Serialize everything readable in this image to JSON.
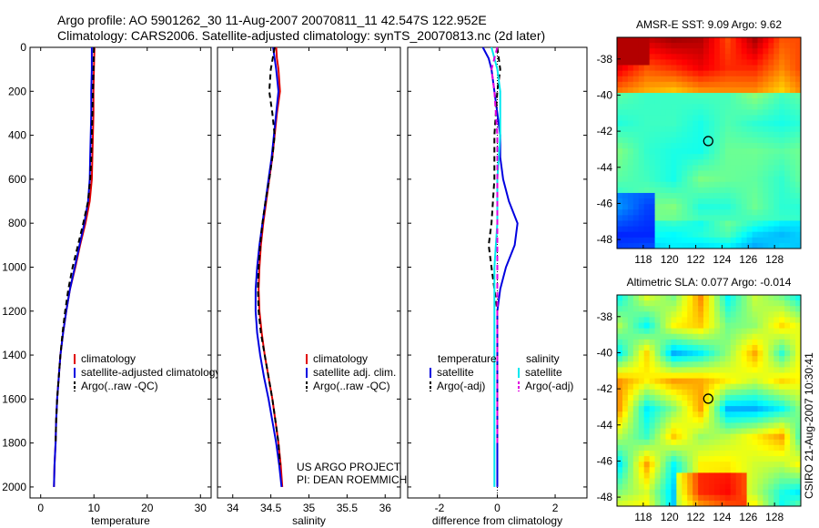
{
  "header": {
    "line1": "Argo profile: AO 5901262_30 11-Aug-2007 20070811_11 42.547S 122.952E",
    "line2": "Climatology: CARS2006. Satellite-adjusted climatology: synTS_20070813.nc (2d later)"
  },
  "credit": "CSIRO 21-Aug-2007 10:30:41",
  "project_text": [
    "US ARGO PROJECT",
    "PI: DEAN ROEMMICH"
  ],
  "colors": {
    "climatology": "#e00000",
    "satellite": "#0000e0",
    "argo": "#000000",
    "salinity_sat": "#00e8f0",
    "salinity_adj": "#e000e0"
  },
  "chart_data": [
    {
      "type": "line",
      "xlabel": "temperature",
      "xlim": [
        -2,
        32
      ],
      "ylim": [
        2050,
        0
      ],
      "xticks": [
        0,
        10,
        20,
        30
      ],
      "yticks": [
        0,
        200,
        400,
        600,
        800,
        1000,
        1200,
        1400,
        1600,
        1800,
        2000
      ],
      "legend_placement": "bottom-right",
      "series": [
        {
          "name": "climatology",
          "color": "#e00000",
          "dash": false,
          "points": [
            [
              10.1,
              0
            ],
            [
              10.0,
              100
            ],
            [
              9.9,
              200
            ],
            [
              9.9,
              300
            ],
            [
              9.8,
              400
            ],
            [
              9.7,
              500
            ],
            [
              9.6,
              600
            ],
            [
              9.2,
              700
            ],
            [
              8.4,
              800
            ],
            [
              7.4,
              900
            ],
            [
              6.5,
              1000
            ],
            [
              5.5,
              1100
            ],
            [
              4.8,
              1200
            ],
            [
              4.2,
              1300
            ],
            [
              3.7,
              1400
            ],
            [
              3.4,
              1500
            ],
            [
              3.1,
              1600
            ],
            [
              2.9,
              1700
            ],
            [
              2.8,
              1800
            ],
            [
              2.6,
              1900
            ],
            [
              2.5,
              2000
            ]
          ]
        },
        {
          "name": "satellite-adjusted climatology",
          "color": "#0000e0",
          "dash": false,
          "points": [
            [
              9.6,
              0
            ],
            [
              9.6,
              100
            ],
            [
              9.5,
              200
            ],
            [
              9.5,
              300
            ],
            [
              9.4,
              400
            ],
            [
              9.3,
              500
            ],
            [
              9.2,
              600
            ],
            [
              8.9,
              700
            ],
            [
              8.2,
              800
            ],
            [
              7.3,
              900
            ],
            [
              6.4,
              1000
            ],
            [
              5.5,
              1100
            ],
            [
              4.8,
              1200
            ],
            [
              4.2,
              1300
            ],
            [
              3.7,
              1400
            ],
            [
              3.4,
              1500
            ],
            [
              3.1,
              1600
            ],
            [
              2.9,
              1700
            ],
            [
              2.8,
              1800
            ],
            [
              2.6,
              1900
            ],
            [
              2.5,
              2000
            ]
          ]
        },
        {
          "name": "Argo(..raw -QC)",
          "color": "#000000",
          "dash": true,
          "points": [
            [
              10.0,
              0
            ],
            [
              9.9,
              100
            ],
            [
              9.8,
              200
            ],
            [
              9.7,
              300
            ],
            [
              9.6,
              400
            ],
            [
              9.5,
              500
            ],
            [
              9.3,
              600
            ],
            [
              8.9,
              700
            ],
            [
              8.0,
              800
            ],
            [
              7.0,
              900
            ],
            [
              6.0,
              1000
            ],
            [
              5.2,
              1100
            ],
            [
              4.6,
              1200
            ],
            [
              4.1,
              1300
            ],
            [
              3.7,
              1400
            ],
            [
              3.4,
              1500
            ],
            [
              3.1,
              1600
            ],
            [
              2.9,
              1700
            ],
            [
              2.8,
              1800
            ]
          ]
        }
      ]
    },
    {
      "type": "line",
      "xlabel": "salinity",
      "xlim": [
        33.8,
        36.2
      ],
      "ylim": [
        2050,
        0
      ],
      "xticks": [
        34,
        34.5,
        35,
        35.5,
        36
      ],
      "legend_placement": "bottom-right",
      "series": [
        {
          "name": "climatology",
          "color": "#e00000",
          "dash": false,
          "points": [
            [
              34.57,
              0
            ],
            [
              34.58,
              50
            ],
            [
              34.6,
              100
            ],
            [
              34.62,
              200
            ],
            [
              34.58,
              300
            ],
            [
              34.55,
              400
            ],
            [
              34.52,
              500
            ],
            [
              34.48,
              600
            ],
            [
              34.44,
              700
            ],
            [
              34.4,
              800
            ],
            [
              34.37,
              900
            ],
            [
              34.35,
              1000
            ],
            [
              34.34,
              1100
            ],
            [
              34.35,
              1200
            ],
            [
              34.38,
              1300
            ],
            [
              34.42,
              1400
            ],
            [
              34.47,
              1500
            ],
            [
              34.52,
              1600
            ],
            [
              34.56,
              1700
            ],
            [
              34.6,
              1800
            ],
            [
              34.63,
              1900
            ],
            [
              34.65,
              2000
            ]
          ]
        },
        {
          "name": "satellite adj. clim.",
          "color": "#0000e0",
          "dash": false,
          "points": [
            [
              34.53,
              0
            ],
            [
              34.55,
              50
            ],
            [
              34.57,
              100
            ],
            [
              34.6,
              200
            ],
            [
              34.57,
              300
            ],
            [
              34.54,
              400
            ],
            [
              34.51,
              500
            ],
            [
              34.47,
              600
            ],
            [
              34.43,
              700
            ],
            [
              34.39,
              800
            ],
            [
              34.35,
              900
            ],
            [
              34.32,
              1000
            ],
            [
              34.3,
              1100
            ],
            [
              34.3,
              1200
            ],
            [
              34.32,
              1300
            ],
            [
              34.36,
              1400
            ],
            [
              34.41,
              1500
            ],
            [
              34.47,
              1600
            ],
            [
              34.52,
              1700
            ],
            [
              34.57,
              1800
            ],
            [
              34.61,
              1900
            ],
            [
              34.64,
              2000
            ]
          ]
        },
        {
          "name": "Argo(..raw -QC)",
          "color": "#000000",
          "dash": true,
          "points": [
            [
              34.55,
              0
            ],
            [
              34.5,
              100
            ],
            [
              34.48,
              200
            ],
            [
              34.52,
              300
            ],
            [
              34.55,
              400
            ],
            [
              34.52,
              500
            ],
            [
              34.48,
              600
            ],
            [
              34.43,
              700
            ],
            [
              34.39,
              800
            ],
            [
              34.36,
              900
            ],
            [
              34.34,
              1000
            ],
            [
              34.33,
              1100
            ],
            [
              34.34,
              1200
            ],
            [
              34.37,
              1300
            ],
            [
              34.42,
              1400
            ],
            [
              34.47,
              1500
            ],
            [
              34.52,
              1600
            ],
            [
              34.56,
              1700
            ],
            [
              34.6,
              1800
            ],
            [
              34.62,
              1900
            ]
          ]
        }
      ],
      "annotations": [
        "US ARGO PROJECT",
        "PI: DEAN ROEMMICH"
      ]
    },
    {
      "type": "line",
      "xlabel": "difference from climatology",
      "xlim": [
        -3.1,
        3.1
      ],
      "ylim": [
        2050,
        0
      ],
      "xticks": [
        -2,
        0,
        2
      ],
      "legend_placement": "bottom",
      "legend_groups": [
        "temperature",
        "salinity"
      ],
      "series": [
        {
          "name": "satellite",
          "group": "temperature",
          "color": "#0000e0",
          "dash": false,
          "points": [
            [
              -0.5,
              0
            ],
            [
              -0.3,
              50
            ],
            [
              -0.2,
              100
            ],
            [
              -0.1,
              200
            ],
            [
              0.0,
              300
            ],
            [
              0.1,
              400
            ],
            [
              0.1,
              500
            ],
            [
              0.2,
              600
            ],
            [
              0.4,
              700
            ],
            [
              0.7,
              800
            ],
            [
              0.6,
              900
            ],
            [
              0.3,
              1000
            ],
            [
              0.1,
              1100
            ],
            [
              0.0,
              1200
            ],
            [
              0.0,
              1400
            ],
            [
              0.0,
              1600
            ],
            [
              0.0,
              1800
            ],
            [
              0.0,
              2000
            ]
          ]
        },
        {
          "name": "Argo(-adj)",
          "group": "temperature",
          "color": "#000000",
          "dash": true,
          "points": [
            [
              0.0,
              0
            ],
            [
              0.1,
              100
            ],
            [
              0.0,
              200
            ],
            [
              -0.1,
              400
            ],
            [
              -0.1,
              600
            ],
            [
              -0.2,
              800
            ],
            [
              -0.3,
              900
            ],
            [
              -0.2,
              1000
            ],
            [
              -0.1,
              1100
            ],
            [
              0.0,
              1200
            ],
            [
              0.0,
              1400
            ],
            [
              0.0,
              1600
            ],
            [
              0.0,
              1800
            ]
          ]
        },
        {
          "name": "satellite",
          "group": "salinity",
          "color": "#00e8f0",
          "dash": false,
          "points": [
            [
              -0.2,
              0
            ],
            [
              0.0,
              100
            ],
            [
              0.1,
              200
            ],
            [
              0.1,
              400
            ],
            [
              0.0,
              600
            ],
            [
              0.0,
              800
            ],
            [
              -0.1,
              1000
            ],
            [
              -0.1,
              1200
            ],
            [
              -0.1,
              1400
            ],
            [
              -0.1,
              1600
            ],
            [
              -0.1,
              1800
            ],
            [
              -0.1,
              2000
            ]
          ]
        },
        {
          "name": "Argo(-adj)",
          "group": "salinity",
          "color": "#e000e0",
          "dash": true,
          "points": [
            [
              0.0,
              0
            ],
            [
              -0.2,
              100
            ],
            [
              -0.1,
              200
            ],
            [
              0.0,
              400
            ],
            [
              0.0,
              600
            ],
            [
              0.0,
              800
            ],
            [
              0.0,
              1000
            ],
            [
              0.0,
              1200
            ],
            [
              0.0,
              1400
            ],
            [
              0.0,
              1600
            ],
            [
              0.0,
              1800
            ]
          ]
        }
      ]
    },
    {
      "type": "heatmap",
      "title": "AMSR-E SST: 9.09 Argo: 9.62",
      "xlim": [
        116,
        130
      ],
      "ylim": [
        -48.5,
        -36.8
      ],
      "xticks": [
        118,
        120,
        122,
        124,
        126,
        128
      ],
      "yticks": [
        -38,
        -40,
        -42,
        -44,
        -46,
        -48
      ],
      "marker": [
        122.952,
        -42.547
      ]
    },
    {
      "type": "heatmap",
      "title": "Altimetric SLA: 0.077 Argo: -0.014",
      "xlim": [
        116,
        130
      ],
      "ylim": [
        -48.5,
        -36.8
      ],
      "xticks": [
        118,
        120,
        122,
        124,
        126,
        128
      ],
      "yticks": [
        -38,
        -40,
        -42,
        -44,
        -46,
        -48
      ],
      "marker": [
        122.952,
        -42.547
      ]
    }
  ]
}
